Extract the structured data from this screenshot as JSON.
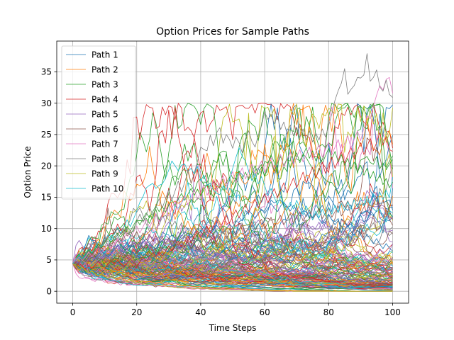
{
  "chart_data": {
    "type": "line",
    "title": "Option Prices for Sample Paths",
    "xlabel": "Time Steps",
    "ylabel": "Option Price",
    "xlim": [
      -5,
      105
    ],
    "ylim": [
      -1.9,
      39.9
    ],
    "xticks": [
      0,
      20,
      40,
      60,
      80,
      100
    ],
    "yticks": [
      0,
      5,
      10,
      15,
      20,
      25,
      30,
      35
    ],
    "grid": true,
    "legend_position": "top-left",
    "start_value": 4.4,
    "steps": 100,
    "colors": [
      "#1f77b4",
      "#ff7f0e",
      "#2ca02c",
      "#d62728",
      "#9467bd",
      "#8c564b",
      "#e377c2",
      "#7f7f7f",
      "#bcbd22",
      "#17becf"
    ],
    "series": [
      {
        "name": "Path 1",
        "values": [
          4.4,
          4.9,
          4.3,
          5.1,
          5.6,
          5.0,
          4.6,
          5.3,
          5.9,
          6.4,
          6.0,
          5.5,
          5.9,
          6.8,
          7.2,
          6.6,
          6.1,
          6.9,
          7.4,
          7.0,
          6.5,
          7.2,
          7.9,
          8.3,
          7.6,
          7.1,
          6.8,
          7.5,
          8.1,
          7.7,
          8.4,
          9.0,
          8.5,
          8.0,
          8.8,
          9.5,
          9.1,
          8.6,
          9.3,
          10.0,
          9.6,
          9.0,
          8.4,
          9.1,
          9.8,
          10.5,
          9.9,
          9.2,
          10.0,
          10.7,
          10.2,
          11.0,
          11.8,
          11.2,
          12.1,
          12.9,
          12.3,
          11.6,
          12.5,
          13.1,
          12.4,
          13.2,
          14.0,
          13.3,
          12.7,
          13.6,
          14.2,
          13.5,
          12.8,
          13.7,
          12.9,
          12.0,
          12.8,
          11.9,
          12.6,
          11.7,
          12.4,
          11.5,
          10.8,
          11.6,
          12.3,
          11.4,
          10.6,
          11.3,
          10.4,
          9.7,
          10.5,
          9.6,
          8.9,
          9.8,
          9.0,
          8.2,
          9.1,
          8.3,
          7.6,
          8.4,
          7.5,
          6.8,
          7.6,
          6.9,
          6.4
        ]
      },
      {
        "name": "Path 2",
        "values": [
          4.4,
          3.8,
          3.3,
          3.9,
          3.4,
          2.9,
          3.3,
          2.8,
          2.4,
          2.9,
          2.5,
          2.1,
          2.5,
          2.2,
          1.9,
          2.3,
          2.0,
          1.7,
          2.0,
          1.8,
          1.5,
          1.8,
          1.6,
          1.4,
          1.6,
          1.4,
          1.2,
          1.4,
          1.2,
          1.0,
          1.2,
          1.1,
          0.9,
          1.1,
          0.9,
          0.8,
          0.9,
          0.8,
          0.7,
          0.8,
          0.7,
          0.6,
          0.7,
          0.6,
          0.5,
          0.6,
          0.5,
          0.5,
          0.5,
          0.4,
          0.4,
          0.5,
          0.4,
          0.3,
          0.4,
          0.3,
          0.3,
          0.3,
          0.3,
          0.2,
          0.3,
          0.2,
          0.2,
          0.2,
          0.2,
          0.2,
          0.2,
          0.1,
          0.2,
          0.1,
          0.1,
          0.1,
          0.1,
          0.1,
          0.1,
          0.1,
          0.1,
          0.1,
          0.1,
          0.1,
          0.1,
          0.0,
          0.1,
          0.0,
          0.0,
          0.0,
          0.0,
          0.0,
          0.0,
          0.0,
          0.0,
          0.0,
          0.0,
          0.0,
          0.0,
          0.0,
          0.0,
          0.0,
          0.0,
          0.0,
          0.0
        ]
      },
      {
        "name": "Path 3",
        "values": [
          4.4,
          5.0,
          5.7,
          5.1,
          5.9,
          6.6,
          6.0,
          6.8,
          7.5,
          6.9,
          7.7,
          8.4,
          7.8,
          8.6,
          9.3,
          8.6,
          9.5,
          10.3,
          9.6,
          10.5,
          11.4,
          10.6,
          11.6,
          12.5,
          11.7,
          12.7,
          13.6,
          12.7,
          13.5,
          12.6,
          13.7,
          14.6,
          13.6,
          14.7,
          15.6,
          14.5,
          15.5,
          16.4,
          15.3,
          16.3,
          15.2,
          16.2,
          17.1,
          16.0,
          15.0,
          16.1,
          17.2,
          16.1,
          17.3,
          18.2,
          17.0,
          18.1,
          19.2,
          17.9,
          19.0,
          17.8,
          18.9,
          20.0,
          18.6,
          19.8,
          18.4,
          19.5,
          20.7,
          19.2,
          20.4,
          21.5,
          20.0,
          21.2,
          19.7,
          20.9,
          22.1,
          20.5,
          21.7,
          22.9,
          21.2,
          22.4,
          20.8,
          22.0,
          20.4,
          21.6,
          22.8,
          21.1,
          22.3,
          20.6,
          21.8,
          20.1,
          21.2,
          19.5,
          20.6,
          19.0,
          20.1,
          18.5,
          19.6,
          18.0,
          19.1,
          17.5,
          18.6,
          17.0,
          18.0,
          16.5,
          17.4
        ]
      },
      {
        "name": "Path 4",
        "values": [
          4.4,
          3.9,
          4.5,
          4.0,
          3.5,
          4.1,
          3.6,
          4.2,
          4.8,
          4.2,
          3.7,
          4.3,
          4.9,
          4.3,
          5.0,
          4.4,
          3.9,
          4.5,
          5.2,
          4.6,
          4.0,
          4.7,
          5.4,
          4.8,
          5.5,
          6.2,
          5.5,
          6.3,
          5.6,
          6.4,
          7.2,
          6.4,
          7.2,
          8.0,
          7.1,
          7.9,
          8.8,
          7.8,
          8.7,
          9.6,
          8.6,
          9.5,
          10.4,
          9.3,
          10.3,
          11.3,
          10.1,
          11.1,
          12.1,
          10.9,
          11.9,
          13.0,
          11.7,
          12.8,
          13.9,
          12.5,
          13.6,
          14.7,
          13.3,
          14.4,
          15.6,
          14.1,
          15.2,
          16.4,
          14.9,
          16.1,
          17.3,
          15.7,
          16.9,
          18.1,
          16.5,
          17.7,
          19.0,
          17.3,
          18.5,
          19.8,
          18.1,
          19.3,
          20.6,
          18.8,
          20.1,
          21.4,
          19.6,
          20.9,
          22.2,
          20.4,
          21.7,
          23.0,
          21.1,
          22.4,
          23.7,
          21.8,
          23.1,
          24.4,
          22.4,
          23.7,
          25.3,
          23.3,
          24.6,
          22.6,
          22.3
        ]
      },
      {
        "name": "Path 5",
        "values": [
          4.4,
          4.9,
          4.4,
          5.0,
          4.5,
          5.1,
          5.7,
          5.1,
          5.8,
          5.2,
          5.9,
          6.6,
          5.9,
          6.6,
          7.3,
          6.5,
          7.3,
          6.5,
          7.2,
          8.0,
          7.1,
          7.9,
          7.0,
          7.8,
          6.9,
          7.7,
          8.5,
          7.5,
          8.3,
          7.3,
          8.1,
          7.1,
          7.9,
          6.9,
          7.7,
          6.7,
          7.5,
          6.5,
          7.2,
          6.3,
          7.0,
          6.1,
          6.8,
          5.9,
          6.6,
          5.7,
          6.4,
          5.5,
          6.1,
          5.3,
          5.9,
          5.1,
          5.6,
          4.8,
          5.4,
          4.6,
          5.1,
          4.4,
          4.9,
          4.2,
          4.7,
          4.0,
          4.4,
          3.8,
          4.2,
          3.6,
          4.0,
          3.4,
          3.8,
          3.2,
          3.6,
          3.0,
          3.4,
          2.9,
          3.2,
          2.7,
          3.0,
          2.5,
          2.8,
          2.4,
          2.6,
          2.2,
          2.5,
          2.1,
          2.3,
          1.9,
          2.2,
          1.8,
          2.0,
          1.7,
          1.9,
          1.6,
          1.8,
          1.5,
          1.6,
          1.4,
          1.5,
          1.3,
          1.4,
          1.2,
          1.3
        ]
      },
      {
        "name": "Path 6",
        "values": [
          4.4,
          4.0,
          4.6,
          5.2,
          4.7,
          5.4,
          6.1,
          5.5,
          6.3,
          7.1,
          8.4,
          13.3,
          10.2,
          9.1,
          10.1,
          9.0,
          9.9,
          8.8,
          9.7,
          8.6,
          9.5,
          8.4,
          9.3,
          8.2,
          9.1,
          8.0,
          8.9,
          7.8,
          8.7,
          7.6,
          8.5,
          7.4,
          8.3,
          7.2,
          8.1,
          7.0,
          7.9,
          6.8,
          7.7,
          6.6,
          7.5,
          8.4,
          7.3,
          8.2,
          9.1,
          7.9,
          8.8,
          9.7,
          8.4,
          9.3,
          10.2,
          8.9,
          9.8,
          10.7,
          9.3,
          10.2,
          11.1,
          9.7,
          10.6,
          11.5,
          10.0,
          10.9,
          11.8,
          10.3,
          11.2,
          12.1,
          10.6,
          11.5,
          12.4,
          10.9,
          11.8,
          12.7,
          11.2,
          12.1,
          13.0,
          11.4,
          12.3,
          13.2,
          11.6,
          12.5,
          13.4,
          11.8,
          12.7,
          13.6,
          12.0,
          12.9,
          13.8,
          12.2,
          13.1,
          14.0,
          12.4,
          13.4,
          14.4,
          12.8,
          13.9,
          15.0,
          13.4,
          14.5,
          12.9,
          11.5,
          10.5
        ]
      },
      {
        "name": "Path 7",
        "values": [
          4.4,
          4.9,
          5.5,
          4.9,
          5.5,
          6.2,
          5.5,
          6.2,
          6.9,
          6.1,
          6.8,
          7.6,
          6.8,
          7.6,
          8.5,
          7.6,
          8.5,
          9.4,
          8.4,
          9.4,
          10.4,
          9.3,
          10.3,
          11.4,
          10.2,
          11.3,
          12.4,
          11.1,
          12.2,
          13.4,
          12.0,
          13.2,
          14.4,
          12.9,
          14.1,
          15.3,
          13.8,
          15.0,
          16.2,
          14.6,
          15.8,
          17.0,
          15.3,
          16.5,
          17.7,
          16.0,
          17.2,
          18.4,
          16.7,
          17.9,
          19.1,
          17.3,
          18.5,
          19.7,
          17.9,
          19.1,
          20.3,
          18.4,
          19.6,
          20.8,
          18.9,
          20.1,
          21.3,
          19.4,
          20.6,
          21.8,
          19.8,
          21.0,
          22.2,
          20.2,
          21.4,
          22.6,
          20.6,
          21.8,
          23.0,
          21.0,
          22.2,
          23.4,
          21.4,
          22.6,
          23.8,
          21.8,
          23.0,
          24.2,
          22.2,
          23.5,
          24.8,
          22.8,
          24.2,
          25.6,
          24.0,
          26.0,
          28.0,
          27.5,
          29.5,
          31.3,
          32.8,
          32.1,
          33.8,
          34.1,
          31.6
        ]
      },
      {
        "name": "Path 8",
        "values": [
          4.4,
          5.0,
          5.6,
          5.0,
          5.7,
          6.4,
          5.7,
          6.4,
          7.2,
          6.4,
          7.2,
          8.1,
          7.2,
          8.1,
          9.0,
          8.0,
          9.0,
          10.0,
          8.9,
          10.0,
          11.1,
          12.3,
          11.0,
          12.2,
          13.5,
          12.1,
          13.4,
          14.8,
          13.3,
          14.7,
          16.2,
          14.5,
          16.0,
          17.6,
          15.8,
          17.4,
          19.1,
          17.2,
          18.9,
          20.7,
          23.0,
          22.6,
          22.4,
          24.9,
          23.2,
          25.3,
          26.1,
          23.6,
          25.0,
          24.2,
          22.8,
          24.6,
          23.7,
          22.1,
          24.3,
          25.6,
          23.9,
          23.0,
          24.9,
          26.4,
          28.6,
          27.4,
          28.2,
          26.7,
          27.9,
          25.8,
          27.0,
          25.1,
          26.5,
          24.8,
          26.2,
          24.5,
          25.9,
          24.1,
          25.6,
          23.8,
          25.2,
          24.1,
          25.9,
          24.6,
          26.4,
          28.3,
          30.5,
          32.0,
          33.2,
          35.5,
          31.4,
          32.2,
          32.8,
          34.1,
          34.0,
          34.5,
          37.9,
          33.5,
          34.1,
          35.3,
          32.6,
          31.9,
          33.7,
          31.4,
          30.9
        ]
      },
      {
        "name": "Path 9",
        "values": [
          4.4,
          3.9,
          3.4,
          3.8,
          3.3,
          2.9,
          3.2,
          2.8,
          2.5,
          2.7,
          2.4,
          2.1,
          2.3,
          2.0,
          1.8,
          2.0,
          1.7,
          1.5,
          1.7,
          1.5,
          1.3,
          1.4,
          1.2,
          1.1,
          1.2,
          1.0,
          0.9,
          1.0,
          0.9,
          0.8,
          0.8,
          0.7,
          0.6,
          0.7,
          0.6,
          0.5,
          0.6,
          0.5,
          0.4,
          0.5,
          0.4,
          0.4,
          0.4,
          0.3,
          0.3,
          0.3,
          0.3,
          0.2,
          0.3,
          0.2,
          0.2,
          0.2,
          0.2,
          0.2,
          0.2,
          0.1,
          0.2,
          0.1,
          0.1,
          0.1,
          0.1,
          0.1,
          0.1,
          0.1,
          0.1,
          0.1,
          0.1,
          0.0,
          0.1,
          0.0,
          0.0,
          0.0,
          0.0,
          0.0,
          0.0,
          0.0,
          0.0,
          0.0,
          0.0,
          0.0,
          0.0,
          0.0,
          0.0,
          0.0,
          0.0,
          0.0,
          0.0,
          0.0,
          0.0,
          0.0,
          0.0,
          0.0,
          0.0,
          0.0,
          0.0,
          0.0,
          0.0,
          0.0,
          0.0,
          0.0,
          0.0
        ]
      },
      {
        "name": "Path 10",
        "values": [
          4.4,
          5.1,
          5.8,
          5.2,
          6.0,
          6.8,
          6.1,
          7.0,
          7.9,
          7.1,
          8.0,
          9.0,
          8.1,
          9.1,
          10.2,
          9.2,
          10.3,
          11.4,
          10.3,
          11.5,
          12.8,
          14.2,
          15.1,
          16.5,
          16.9,
          17.2,
          16.4,
          16.9,
          17.1,
          18.0,
          19.3,
          20.8,
          20.0,
          19.2,
          20.1,
          20.3,
          19.1,
          19.6,
          18.7,
          19.9,
          17.6,
          18.5,
          16.9,
          17.2,
          16.1,
          15.6,
          15.4,
          16.8,
          16.2,
          17.8,
          19.6,
          21.3,
          22.9,
          21.5,
          20.8,
          19.2,
          17.6,
          18.8,
          17.1,
          18.3,
          16.9,
          15.2,
          16.4,
          15.0,
          13.8,
          15.1,
          14.0,
          12.9,
          14.2,
          13.1,
          14.5,
          13.3,
          12.2,
          13.6,
          12.5,
          11.4,
          12.8,
          11.7,
          13.1,
          12.0,
          13.4,
          12.3,
          13.7,
          12.6,
          14.0,
          12.9,
          14.3,
          13.1,
          14.6,
          13.4,
          14.9,
          13.7,
          15.2,
          14.0,
          15.5,
          14.3,
          15.8,
          14.6,
          16.1,
          14.9,
          18.2
        ]
      }
    ]
  }
}
